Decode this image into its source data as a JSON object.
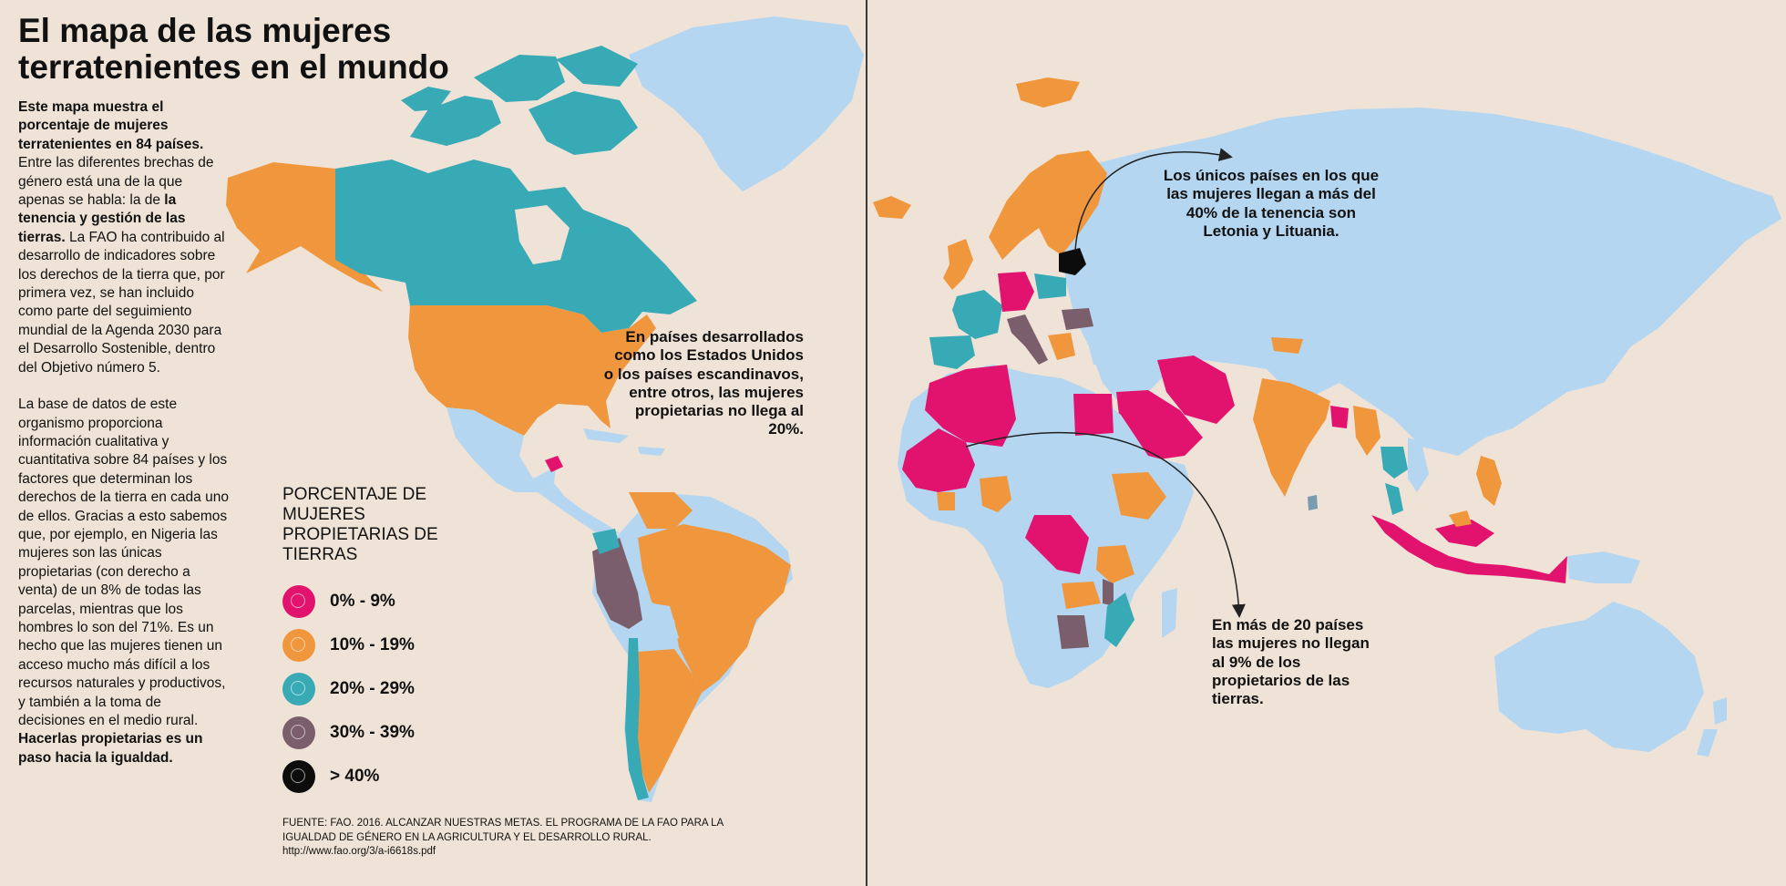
{
  "title": "El mapa de las mujeres terratenientes en el mundo",
  "intro": {
    "lead_bold": "Este mapa muestra el porcentaje de mujeres terratenientes en 84 países.",
    "text1": " Entre las diferentes brechas de género está una de la que apenas se habla: la de ",
    "bold2": "la tenencia y gestión de las tierras.",
    "text2": " La FAO ha contribuido al desarrollo de indicadores sobre los derechos de la tierra que, por primera vez, se han incluido como parte del seguimiento mundial de la Agenda 2030 para el Desarrollo Sostenible, dentro del Objetivo número 5.",
    "paragraph2": "La base de datos de este organismo proporciona información cualitativa y cuantitativa sobre 84 países y los factores que determinan los derechos de la tierra en cada uno de ellos. Gracias a esto sabemos que, por ejemplo, en Nigeria las mujeres son las únicas propietarias (con derecho a venta) de un 8% de todas las parcelas, mientras que los hombres lo son del 71%. Es un hecho que las mujeres tienen un acceso mucho más difícil a los recursos naturales y productivos, y también a la toma de decisiones en el medio rural.",
    "closing_bold": "Hacerlas propietarias es un paso hacia la igualdad."
  },
  "legend": {
    "title": "PORCENTAJE DE MUJERES PROPIETARIAS DE TIERRAS",
    "items": [
      {
        "label": "0% - 9%",
        "color": "#e2136e"
      },
      {
        "label": "10% - 19%",
        "color": "#f0963c"
      },
      {
        "label": "20% - 29%",
        "color": "#37aab6"
      },
      {
        "label": "30% - 39%",
        "color": "#7a5e6c"
      },
      {
        "label": "> 40%",
        "color": "#0c0c0c"
      }
    ]
  },
  "source": {
    "line": "FUENTE: FAO. 2016. ALCANZAR NUESTRAS METAS. EL PROGRAMA DE LA FAO PARA LA IGUALDAD DE GÉNERO EN LA AGRICULTURA Y EL DESARROLLO RURAL.",
    "url": "http://www.fao.org/3/a-i6618s.pdf"
  },
  "annotations": {
    "developed": "En países desarrollados como los Estados Unidos o los países escandinavos, entre otros, las mujeres propietarias no llega al 20%.",
    "baltics": "Los únicos países en los que las mujeres llegan a más del 40% de la tenencia son Letonia y Lituania.",
    "twenty_countries": "En más de 20 países las mujeres no llegan al 9% de los propietarios de las tierras."
  },
  "map_colors": {
    "background": "#efe3d7",
    "no_data": "#b4d6f0",
    "divider": "#3a3a3a"
  }
}
